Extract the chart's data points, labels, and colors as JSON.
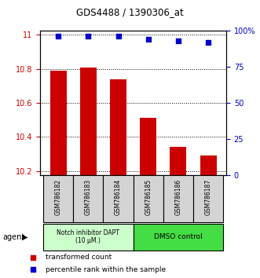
{
  "title": "GDS4488 / 1390306_at",
  "categories": [
    "GSM786182",
    "GSM786183",
    "GSM786184",
    "GSM786185",
    "GSM786186",
    "GSM786187"
  ],
  "bar_values": [
    10.79,
    10.81,
    10.74,
    10.51,
    10.34,
    10.29
  ],
  "percentile_values": [
    96,
    96,
    96,
    94,
    93,
    92
  ],
  "ylim_left": [
    10.175,
    11.025
  ],
  "ylim_right": [
    0,
    100
  ],
  "yticks_left": [
    10.2,
    10.4,
    10.6,
    10.8,
    11.0
  ],
  "ytick_left_labels": [
    "10.2",
    "10.4",
    "10.6",
    "10.8",
    "11"
  ],
  "yticks_right": [
    0,
    25,
    50,
    75,
    100
  ],
  "ytick_right_labels": [
    "0",
    "25",
    "50",
    "75",
    "100%"
  ],
  "bar_color": "#cc0000",
  "dot_color": "#0000cc",
  "bar_bottom": 10.175,
  "group1_label": "Notch inhibitor DAPT\n(10 μM.)",
  "group2_label": "DMSO control",
  "group1_color": "#ccffcc",
  "group2_color": "#44dd44",
  "agent_label": "agent",
  "legend1": "transformed count",
  "legend2": "percentile rank within the sample",
  "ylabel_left_color": "#cc0000",
  "ylabel_right_color": "#0000cc",
  "label_bg_color": "#d4d4d4"
}
